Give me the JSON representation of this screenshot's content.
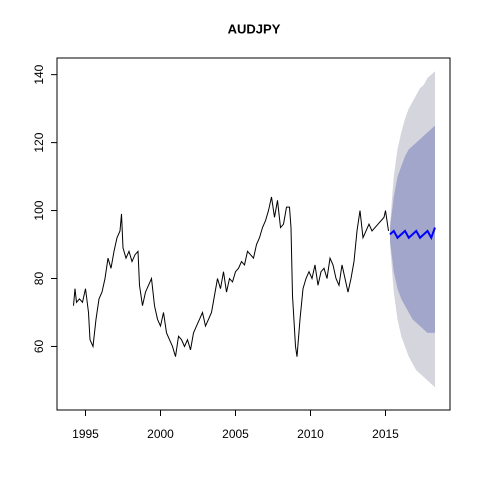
{
  "chart_data": {
    "type": "line",
    "title": "AUDJPY",
    "xlim": [
      1993.1,
      2019.3
    ],
    "ylim": [
      41.3,
      144.9
    ],
    "xticks": [
      1995,
      2000,
      2005,
      2010,
      2015
    ],
    "yticks": [
      60,
      80,
      100,
      120,
      140
    ],
    "color": "#000000",
    "x": [
      1994.2,
      1994.3,
      1994.4,
      1994.6,
      1994.8,
      1995.0,
      1995.2,
      1995.3,
      1995.5,
      1995.7,
      1995.9,
      1996.1,
      1996.3,
      1996.5,
      1996.7,
      1996.9,
      1997.1,
      1997.3,
      1997.4,
      1997.5,
      1997.7,
      1997.9,
      1998.1,
      1998.3,
      1998.5,
      1998.6,
      1998.8,
      1999.0,
      1999.2,
      1999.4,
      1999.6,
      1999.8,
      2000.0,
      2000.2,
      2000.4,
      2000.6,
      2000.8,
      2001.0,
      2001.2,
      2001.4,
      2001.6,
      2001.8,
      2002.0,
      2002.2,
      2002.4,
      2002.6,
      2002.8,
      2003.0,
      2003.2,
      2003.4,
      2003.6,
      2003.8,
      2004.0,
      2004.2,
      2004.4,
      2004.6,
      2004.8,
      2005.0,
      2005.2,
      2005.4,
      2005.6,
      2005.8,
      2006.0,
      2006.2,
      2006.4,
      2006.6,
      2006.8,
      2007.0,
      2007.2,
      2007.4,
      2007.6,
      2007.8,
      2008.0,
      2008.2,
      2008.4,
      2008.6,
      2008.7,
      2008.8,
      2009.0,
      2009.1,
      2009.3,
      2009.5,
      2009.7,
      2009.9,
      2010.1,
      2010.3,
      2010.5,
      2010.7,
      2010.9,
      2011.1,
      2011.3,
      2011.5,
      2011.7,
      2011.9,
      2012.1,
      2012.3,
      2012.5,
      2012.7,
      2012.9,
      2013.1,
      2013.3,
      2013.5,
      2013.7,
      2013.9,
      2014.1,
      2014.3,
      2014.5,
      2014.7,
      2014.9,
      2015.0,
      2015.2
    ],
    "values": [
      72,
      77,
      73,
      74,
      73,
      77,
      70,
      62,
      60,
      68,
      74,
      76,
      80,
      86,
      83,
      88,
      92,
      94,
      99,
      89,
      86,
      88,
      85,
      87,
      88,
      78,
      72,
      76,
      78,
      80,
      72,
      68,
      66,
      70,
      64,
      62,
      60,
      57,
      63,
      62,
      60,
      62,
      59,
      64,
      66,
      68,
      70,
      66,
      68,
      70,
      75,
      80,
      77,
      82,
      76,
      80,
      79,
      82,
      83,
      85,
      84,
      88,
      87,
      86,
      90,
      92,
      95,
      97,
      100,
      104,
      98,
      103,
      95,
      96,
      101,
      101,
      95,
      75,
      60,
      57,
      68,
      77,
      80,
      82,
      80,
      84,
      78,
      82,
      83,
      80,
      86,
      84,
      80,
      78,
      84,
      80,
      76,
      80,
      85,
      94,
      100,
      92,
      94,
      96,
      94,
      95,
      96,
      97,
      98,
      100,
      94
    ],
    "forecast": {
      "x": [
        2015.3,
        2015.55,
        2015.8,
        2016.05,
        2016.3,
        2016.55,
        2016.8,
        2017.05,
        2017.3,
        2017.55,
        2017.8,
        2018.05,
        2018.3
      ],
      "mean": [
        93,
        94,
        92,
        93,
        94,
        92,
        93,
        94,
        92,
        93,
        94,
        92,
        95
      ],
      "color": "#0000ff",
      "bands": [
        {
          "lower": [
            90,
            76,
            68,
            63,
            60,
            57,
            55,
            53,
            52,
            51,
            50,
            49,
            48
          ],
          "upper": [
            96,
            110,
            118,
            123,
            127,
            130,
            132,
            134,
            136,
            137,
            139,
            140,
            141
          ],
          "color": "#d5d5de"
        },
        {
          "lower": [
            91,
            82,
            77,
            74,
            72,
            70,
            68,
            67,
            66,
            65,
            64,
            64,
            64
          ],
          "upper": [
            95,
            104,
            110,
            113,
            116,
            118,
            119,
            120,
            121,
            122,
            123,
            124,
            125
          ],
          "color": "#a3a6cb"
        }
      ]
    }
  }
}
